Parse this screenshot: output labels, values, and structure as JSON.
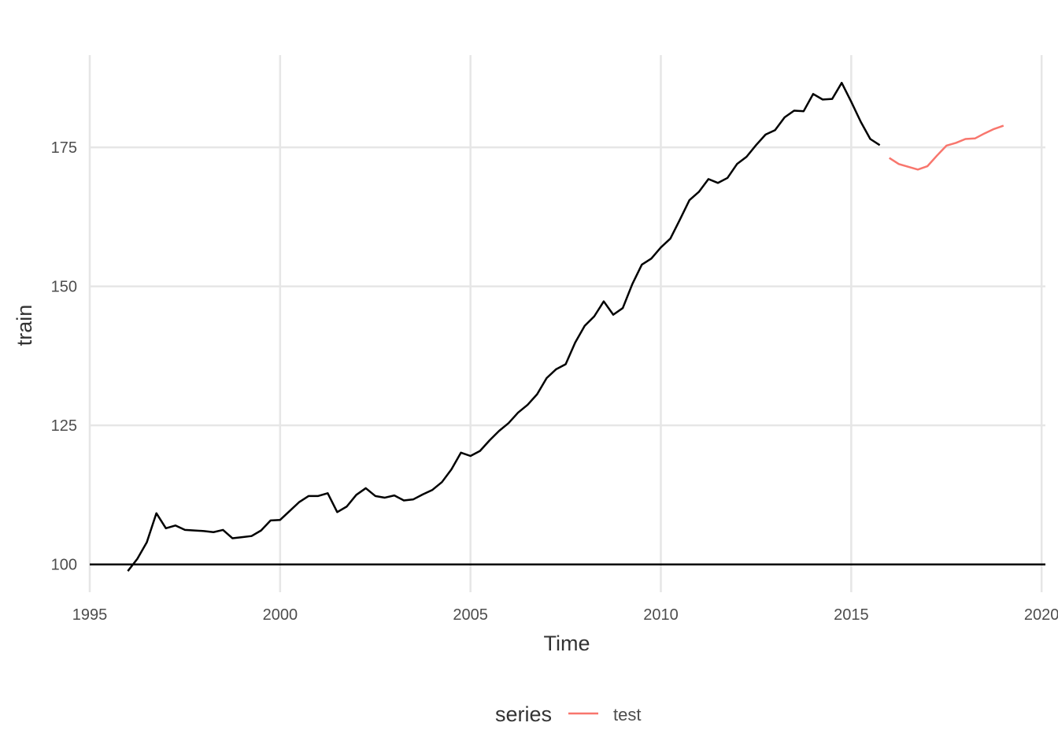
{
  "chart_data": {
    "type": "line",
    "title": "",
    "xlabel": "Time",
    "ylabel": "train",
    "xlim": [
      1995,
      2020.1
    ],
    "ylim": [
      95,
      193
    ],
    "x_ticks": [
      1995,
      2000,
      2005,
      2010,
      2015,
      2020
    ],
    "x_tick_labels": [
      "1995",
      "2000",
      "2005",
      "2010",
      "2015",
      "2020"
    ],
    "y_ticks": [
      100,
      125,
      150,
      175
    ],
    "y_tick_labels": [
      "100",
      "125",
      "150",
      "175"
    ],
    "hline": {
      "y": 100,
      "color": "#000000"
    },
    "grid": true,
    "legend": {
      "title": "series",
      "position": "bottom"
    },
    "series": [
      {
        "color": "#000000",
        "start": 1996.0,
        "step": 0.25,
        "values": [
          98.8,
          101.0,
          104.0,
          109.2,
          106.5,
          107.0,
          106.2,
          106.1,
          106.0,
          105.8,
          106.2,
          104.7,
          104.9,
          105.1,
          106.1,
          107.9,
          108.0,
          109.6,
          111.2,
          112.3,
          112.3,
          112.8,
          109.4,
          110.4,
          112.5,
          113.7,
          112.3,
          112.0,
          112.4,
          111.5,
          111.7,
          112.6,
          113.4,
          114.8,
          117.1,
          120.1,
          119.5,
          120.4,
          122.3,
          124.0,
          125.4,
          127.3,
          128.7,
          130.6,
          133.5,
          135.1,
          136.0,
          139.9,
          142.9,
          144.6,
          147.3,
          144.9,
          146.1,
          150.4,
          153.9,
          155.0,
          157.0,
          158.6,
          162.0,
          165.5,
          167.0,
          169.3,
          168.6,
          169.5,
          172.0,
          173.3,
          175.4,
          177.3,
          178.1,
          180.4,
          181.6,
          181.5,
          184.6,
          183.6,
          183.7,
          186.6,
          183.2,
          179.6,
          176.5,
          175.4
        ]
      },
      {
        "name": "test",
        "color": "#f8766d",
        "start": 2016.0,
        "step": 0.25,
        "values": [
          173.1,
          172.0,
          171.5,
          171.0,
          171.6,
          173.5,
          175.3,
          175.8,
          176.5,
          176.6,
          177.5,
          178.3,
          178.9
        ]
      }
    ]
  }
}
